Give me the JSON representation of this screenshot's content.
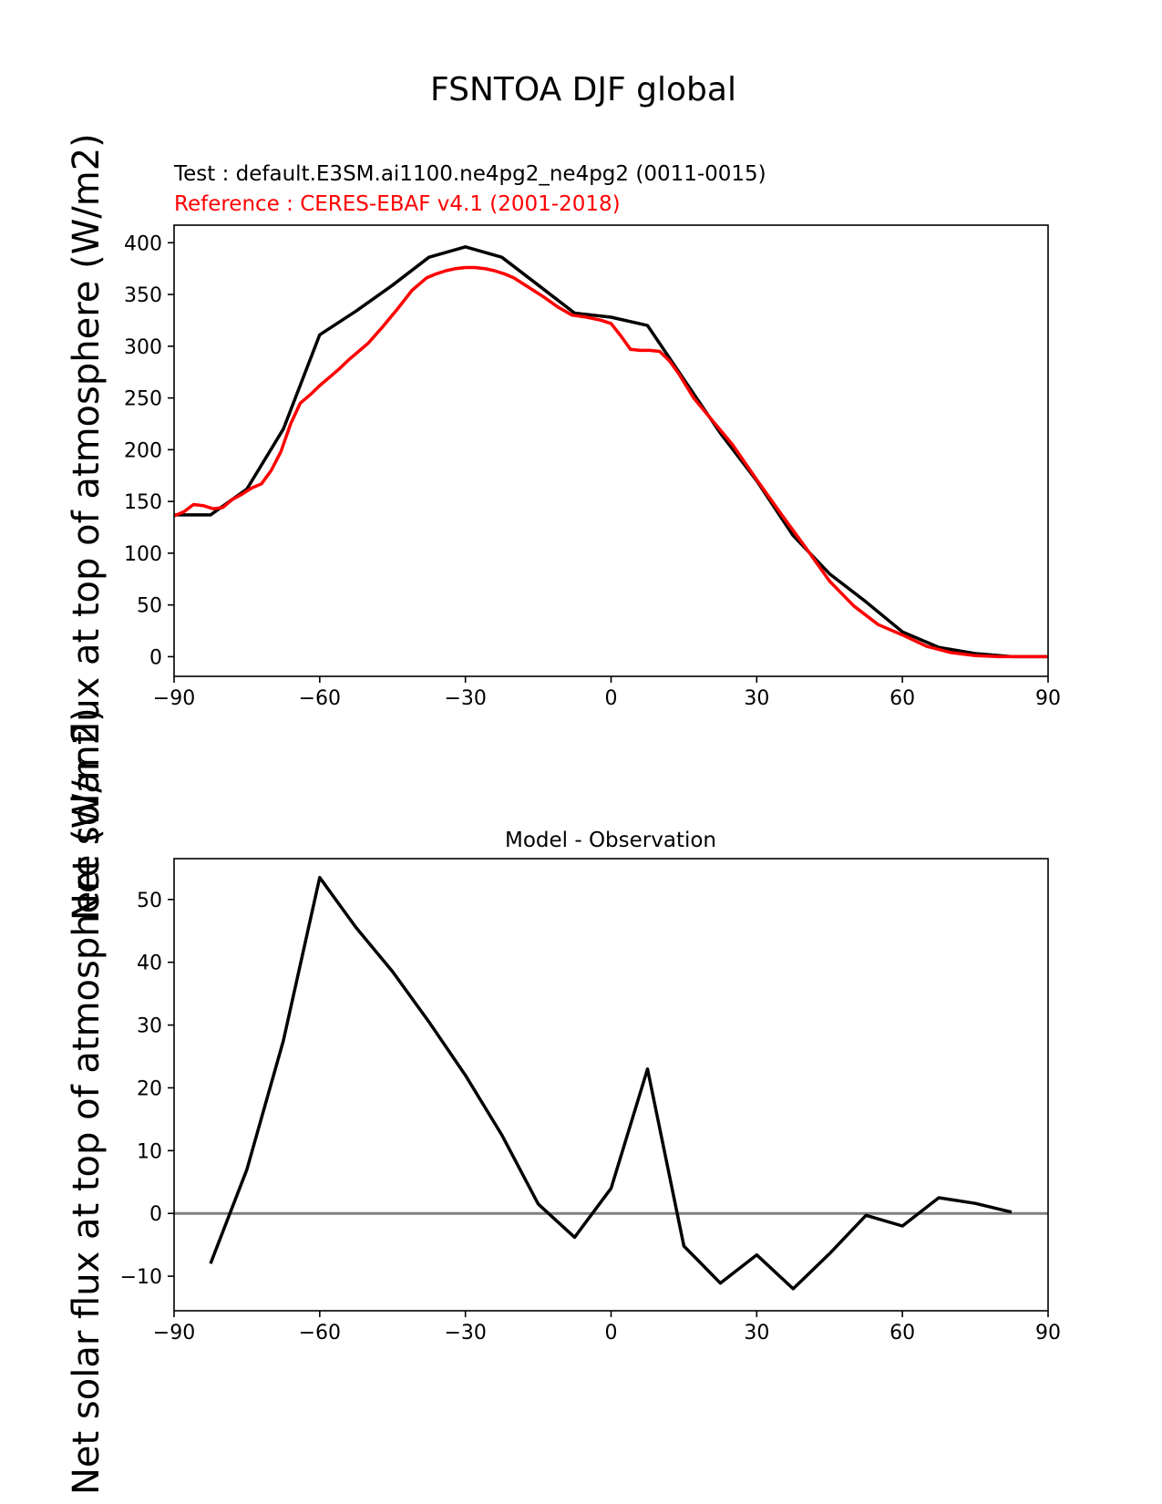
{
  "figure": {
    "suptitle": "FSNTOA DJF global",
    "ylabel_top": "Net solar flux at top of atmosphere (W/m2)",
    "ylabel_bottom": "Net solar flux at top of atmosphere (W/m2)"
  },
  "chart_data": [
    {
      "type": "line",
      "subtitle_test": "Test : default.E3SM.ai1100.ne4pg2_ne4pg2 (0011-0015)",
      "subtitle_ref": "Reference : CERES-EBAF v4.1 (2001-2018)",
      "test_color": "#000000",
      "ref_color": "#ff0000",
      "xlim": [
        -90,
        90
      ],
      "ylim": [
        -19,
        417
      ],
      "xticks": [
        -90,
        -60,
        -30,
        0,
        30,
        60,
        90
      ],
      "xtick_labels": [
        "−90",
        "−60",
        "−30",
        "0",
        "30",
        "60",
        "90"
      ],
      "yticks": [
        0,
        50,
        100,
        150,
        200,
        250,
        300,
        350,
        400
      ],
      "series": [
        {
          "color": "#000000",
          "x": [
            -90,
            -82.5,
            -75,
            -67.5,
            -60,
            -52.5,
            -45,
            -37.5,
            -30,
            -22.5,
            -15,
            -7.5,
            0,
            7.5,
            15,
            22.5,
            30,
            37.5,
            45,
            52.5,
            60,
            67.5,
            75,
            82.5,
            90
          ],
          "values": [
            137,
            137,
            162,
            220,
            311,
            334,
            359,
            386,
            396,
            386,
            359,
            332,
            328,
            320,
            268,
            216,
            170,
            117,
            80,
            53,
            24,
            9,
            3,
            0,
            0
          ]
        },
        {
          "color": "#ff0000",
          "x": [
            -90,
            -88,
            -86,
            -84,
            -82,
            -80,
            -78,
            -76,
            -74,
            -72,
            -70,
            -68,
            -66,
            -64,
            -62,
            -60,
            -58,
            -56,
            -54,
            -52,
            -50,
            -47,
            -44,
            -41,
            -38,
            -36,
            -34,
            -32,
            -30,
            -28,
            -26,
            -24,
            -22,
            -20,
            -17,
            -14,
            -11,
            -8,
            -5,
            -2,
            0,
            2,
            4,
            6,
            8,
            10,
            12,
            14,
            17,
            20,
            25,
            30,
            35,
            40,
            45,
            50,
            55,
            60,
            65,
            70,
            75,
            80,
            85,
            90
          ],
          "values": [
            136,
            140,
            147,
            146,
            143,
            144,
            152,
            157,
            163,
            167,
            180,
            198,
            225,
            245,
            253,
            262,
            270,
            278,
            287,
            295,
            303,
            319,
            336,
            354,
            366,
            370,
            373,
            375,
            376,
            376,
            375,
            373,
            370,
            366,
            357,
            348,
            338,
            330,
            328,
            325,
            322,
            310,
            297,
            296,
            296,
            295,
            286,
            273,
            250,
            233,
            205,
            171,
            138,
            106,
            73,
            49,
            31,
            21,
            10,
            4,
            1,
            0,
            0,
            0
          ]
        }
      ]
    },
    {
      "type": "line",
      "title": "Model - Observation",
      "xlim": [
        -90,
        90
      ],
      "ylim": [
        -15.5,
        56.5
      ],
      "xticks": [
        -90,
        -60,
        -30,
        0,
        30,
        60,
        90
      ],
      "xtick_labels": [
        "−90",
        "−60",
        "−30",
        "0",
        "30",
        "60",
        "90"
      ],
      "yticks": [
        -10,
        0,
        10,
        20,
        30,
        40,
        50
      ],
      "ytick_labels": [
        "−10",
        "0",
        "10",
        "20",
        "30",
        "40",
        "50"
      ],
      "zero_line_color": "#808080",
      "series": [
        {
          "color": "#000000",
          "x": [
            -82.5,
            -75,
            -67.5,
            -60,
            -52.5,
            -45,
            -37.5,
            -30,
            -22.5,
            -15,
            -7.5,
            0,
            7.5,
            15,
            22.5,
            30,
            37.5,
            45,
            52.5,
            60,
            67.5,
            75,
            82.5
          ],
          "values": [
            -8,
            7,
            27.5,
            53.5,
            45.5,
            38.5,
            30.5,
            22,
            12.5,
            1.5,
            -3.8,
            4,
            23,
            -5.2,
            -11.1,
            -6.6,
            -12,
            -6.4,
            -0.3,
            -2,
            2.5,
            1.6,
            0.2
          ]
        }
      ]
    }
  ]
}
